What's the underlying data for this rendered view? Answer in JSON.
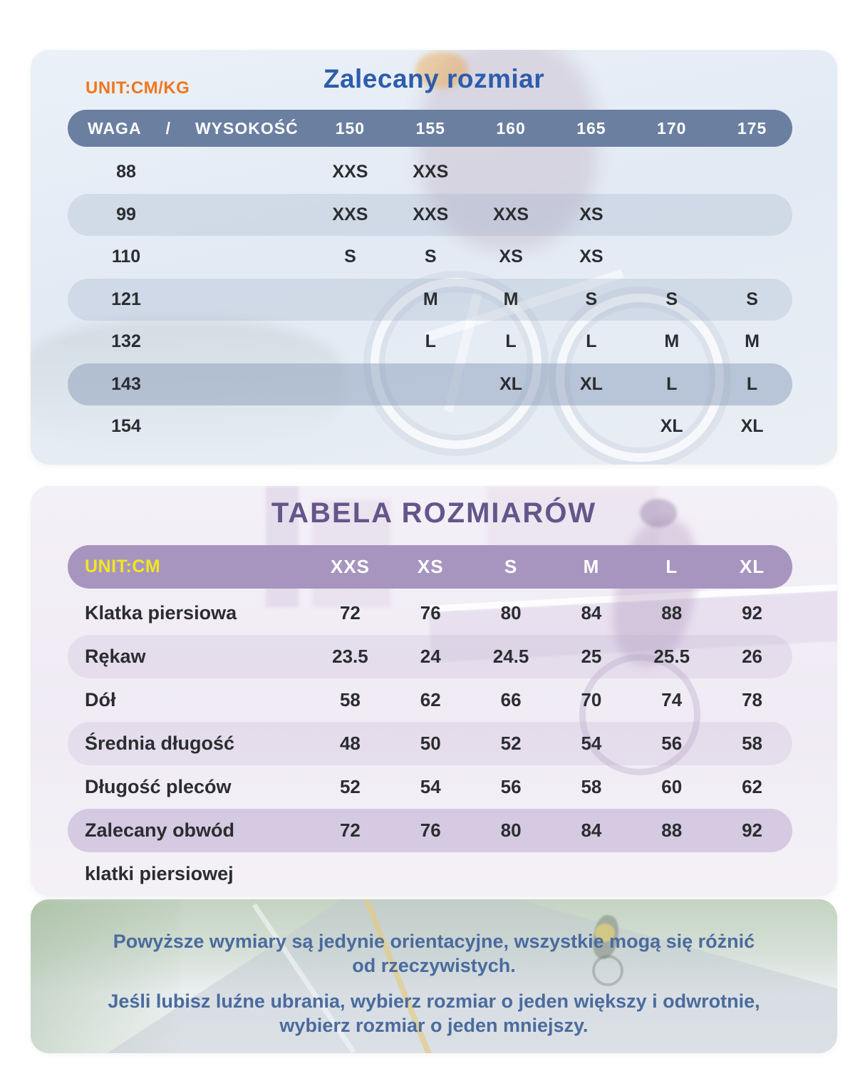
{
  "recommended_size_table": {
    "unit_label": "UNIT:CM/KG",
    "title": "Zalecany rozmiar",
    "header": {
      "weight_label": "WAGA",
      "separator": "/",
      "height_label": "WYSOKOŚĆ",
      "heights": [
        "150",
        "155",
        "160",
        "165",
        "170",
        "175"
      ]
    },
    "rows": [
      {
        "weight": "88",
        "sizes": [
          "XXS",
          "XXS",
          "",
          "",
          "",
          ""
        ]
      },
      {
        "weight": "99",
        "sizes": [
          "XXS",
          "XXS",
          "XXS",
          "XS",
          "",
          ""
        ]
      },
      {
        "weight": "110",
        "sizes": [
          "S",
          "S",
          "XS",
          "XS",
          "",
          ""
        ]
      },
      {
        "weight": "121",
        "sizes": [
          "",
          "M",
          "M",
          "S",
          "S",
          "S"
        ]
      },
      {
        "weight": "132",
        "sizes": [
          "",
          "L",
          "L",
          "L",
          "M",
          "M"
        ]
      },
      {
        "weight": "143",
        "sizes": [
          "",
          "",
          "XL",
          "XL",
          "L",
          "L"
        ]
      },
      {
        "weight": "154",
        "sizes": [
          "",
          "",
          "",
          "",
          "XL",
          "XL"
        ]
      }
    ]
  },
  "size_chart_table": {
    "title": "TABELA ROZMIARÓW",
    "unit_label": "UNIT:CM",
    "size_headers": [
      "XXS",
      "XS",
      "S",
      "M",
      "L",
      "XL"
    ],
    "rows": [
      {
        "label": "Klatka piersiowa",
        "values": [
          "72",
          "76",
          "80",
          "84",
          "88",
          "92"
        ]
      },
      {
        "label": "Rękaw",
        "values": [
          "23.5",
          "24",
          "24.5",
          "25",
          "25.5",
          "26"
        ]
      },
      {
        "label": "Dół",
        "values": [
          "58",
          "62",
          "66",
          "70",
          "74",
          "78"
        ]
      },
      {
        "label": "Średnia długość",
        "values": [
          "48",
          "50",
          "52",
          "54",
          "56",
          "58"
        ]
      },
      {
        "label": "Długość pleców",
        "values": [
          "52",
          "54",
          "56",
          "58",
          "60",
          "62"
        ]
      },
      {
        "label": "Zalecany obwód",
        "values": [
          "72",
          "76",
          "80",
          "84",
          "88",
          "92"
        ]
      },
      {
        "label": "klatki piersiowej",
        "values": [
          "",
          "",
          "",
          "",
          "",
          ""
        ]
      }
    ]
  },
  "footer_note": {
    "para1_line1": "Powyższe wymiary są jedynie orientacyjne, wszystkie mogą się różnić",
    "para1_line2": "od rzeczywistych.",
    "para2_line1": "Jeśli lubisz luźne ubrania, wybierz rozmiar o jeden większy i odwrotnie,",
    "para2_line2": "wybierz rozmiar o jeden mniejszy."
  },
  "colors": {
    "unit_cmkg_orange": "#F0761E",
    "table1_title_blue": "#2D5DAB",
    "table1_header_bg": "#6B7FA1",
    "table2_title_purple": "#64568B",
    "table2_header_bg": "#A795C0",
    "unit_cm_yellow": "#F2E71D",
    "footer_text_blue": "#4A6B9E"
  }
}
